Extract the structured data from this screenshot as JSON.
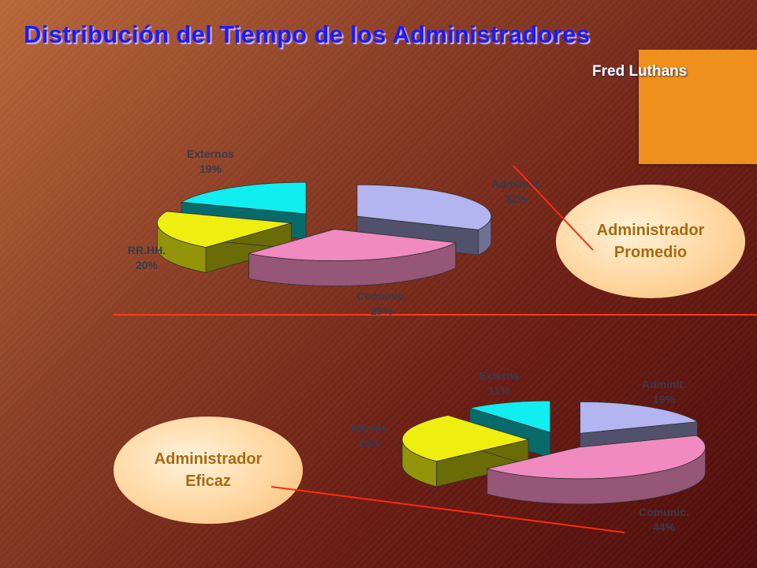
{
  "title": "Distribución del Tiempo de los Administradores",
  "author": "Fred Luthans",
  "chart_data": [
    {
      "type": "pie",
      "three_d": true,
      "unit": "%",
      "slices": [
        {
          "label": "Administ.",
          "value": 32,
          "value_label": "32%",
          "color": "#b4b4f0"
        },
        {
          "label": "Comunic.",
          "value": 29,
          "value_label": "29%",
          "color": "#f08ac0"
        },
        {
          "label": "RR.HH.",
          "value": 20,
          "value_label": "20%",
          "color": "#eeee10"
        },
        {
          "label": "Externos",
          "value": 19,
          "value_label": "19%",
          "color": "#10eef0"
        }
      ]
    },
    {
      "type": "pie",
      "three_d": true,
      "unit": "%",
      "slices": [
        {
          "label": "Adminit.",
          "value": 19,
          "value_label": "19%",
          "color": "#b4b4f0"
        },
        {
          "label": "Comunic.",
          "value": 44,
          "value_label": "44%",
          "color": "#f08ac0"
        },
        {
          "label": "RR.HH.",
          "value": 26,
          "value_label": "26%",
          "color": "#eeee10"
        },
        {
          "label": "Externs",
          "value": 11,
          "value_label": "11%",
          "color": "#10eef0"
        }
      ]
    }
  ],
  "callouts": {
    "top": {
      "line1": "Administrador",
      "line2": "Promedio"
    },
    "bottom": {
      "line1": "Administrador",
      "line2": "Eficaz"
    }
  }
}
